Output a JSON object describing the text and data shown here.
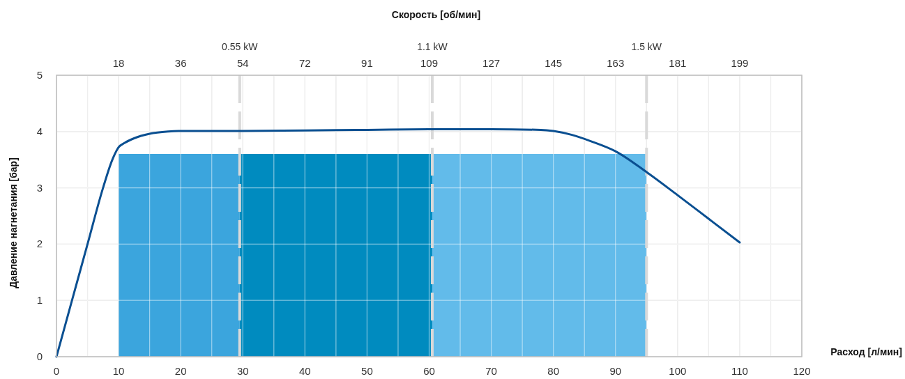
{
  "chart_data": {
    "type": "line",
    "xlabel": "Расход [л/мин]",
    "ylabel": "Давление нагнетания [бар]",
    "x2label": "Скорость [об/мин]",
    "xlim": [
      0,
      120
    ],
    "xticks": [
      0,
      {
        "value": 5,
        "label": null
      },
      10,
      {
        "value": 15,
        "label": null
      },
      20,
      {
        "value": 25,
        "label": null
      },
      30,
      {
        "value": 35,
        "label": null
      },
      40,
      {
        "value": 45,
        "label": null
      },
      50,
      {
        "value": 55,
        "label": null
      },
      60,
      {
        "value": 65,
        "label": null
      },
      70,
      {
        "value": 75,
        "label": null
      },
      80,
      {
        "value": 85,
        "label": null
      },
      90,
      {
        "value": 95,
        "label": null
      },
      100,
      {
        "value": 105,
        "label": null
      },
      110,
      {
        "value": 115,
        "label": null
      },
      120
    ],
    "x2lim": [
      0,
      217.2
    ],
    "x2ticks": [
      {
        "value": 18.1,
        "label": "18"
      },
      {
        "value": 36.2,
        "label": "36"
      },
      {
        "value": 54.3,
        "label": "54"
      },
      {
        "value": 72.4,
        "label": "72"
      },
      {
        "value": 90.5,
        "label": "91"
      },
      {
        "value": 108.6,
        "label": "109"
      },
      {
        "value": 126.7,
        "label": "127"
      },
      {
        "value": 144.8,
        "label": "145"
      },
      {
        "value": 162.9,
        "label": "163"
      },
      {
        "value": 181,
        "label": "181"
      },
      {
        "value": 199.1,
        "label": "199"
      }
    ],
    "ylim": [
      0,
      5
    ],
    "yticks": [
      0,
      1,
      2,
      3,
      4,
      5
    ],
    "grid": true,
    "series": [
      {
        "type": "area",
        "color": "#3ba5dd",
        "x": [
          10,
          29.5
        ],
        "values": [
          3.6,
          3.6
        ]
      },
      {
        "type": "area",
        "color": "#008bbf",
        "x": [
          29.5,
          60.5
        ],
        "values": [
          3.6,
          3.6
        ]
      },
      {
        "type": "area",
        "color": "#62bbea",
        "x": [
          60.5,
          95
        ],
        "values": [
          3.6,
          3.6
        ]
      },
      {
        "color": "#0a4f91",
        "x": [
          0,
          2.5,
          5,
          7.5,
          9,
          10,
          11,
          12.5,
          15,
          18,
          20,
          25,
          30,
          40,
          50,
          60,
          70,
          78,
          80,
          83,
          86,
          90,
          95,
          100,
          105,
          110
        ],
        "values": [
          0,
          1,
          2,
          3,
          3.5,
          3.72,
          3.8,
          3.88,
          3.96,
          4,
          4.01,
          4.01,
          4.01,
          4.02,
          4.03,
          4.04,
          4.04,
          4.03,
          4.01,
          3.94,
          3.83,
          3.65,
          3.28,
          2.87,
          2.45,
          2.03
        ]
      }
    ],
    "ref_lines": [
      {
        "axis": "x",
        "value": 29.5,
        "label": "0.55 kW",
        "color": "#d9d9d9",
        "line_style": "dashed"
      },
      {
        "axis": "x",
        "value": 60.5,
        "label": "1.1 kW",
        "color": "#d9d9d9",
        "line_style": "dashed"
      },
      {
        "axis": "x",
        "value": 95,
        "label": "1.5 kW",
        "color": "#d9d9d9",
        "line_style": "dashed"
      }
    ]
  }
}
